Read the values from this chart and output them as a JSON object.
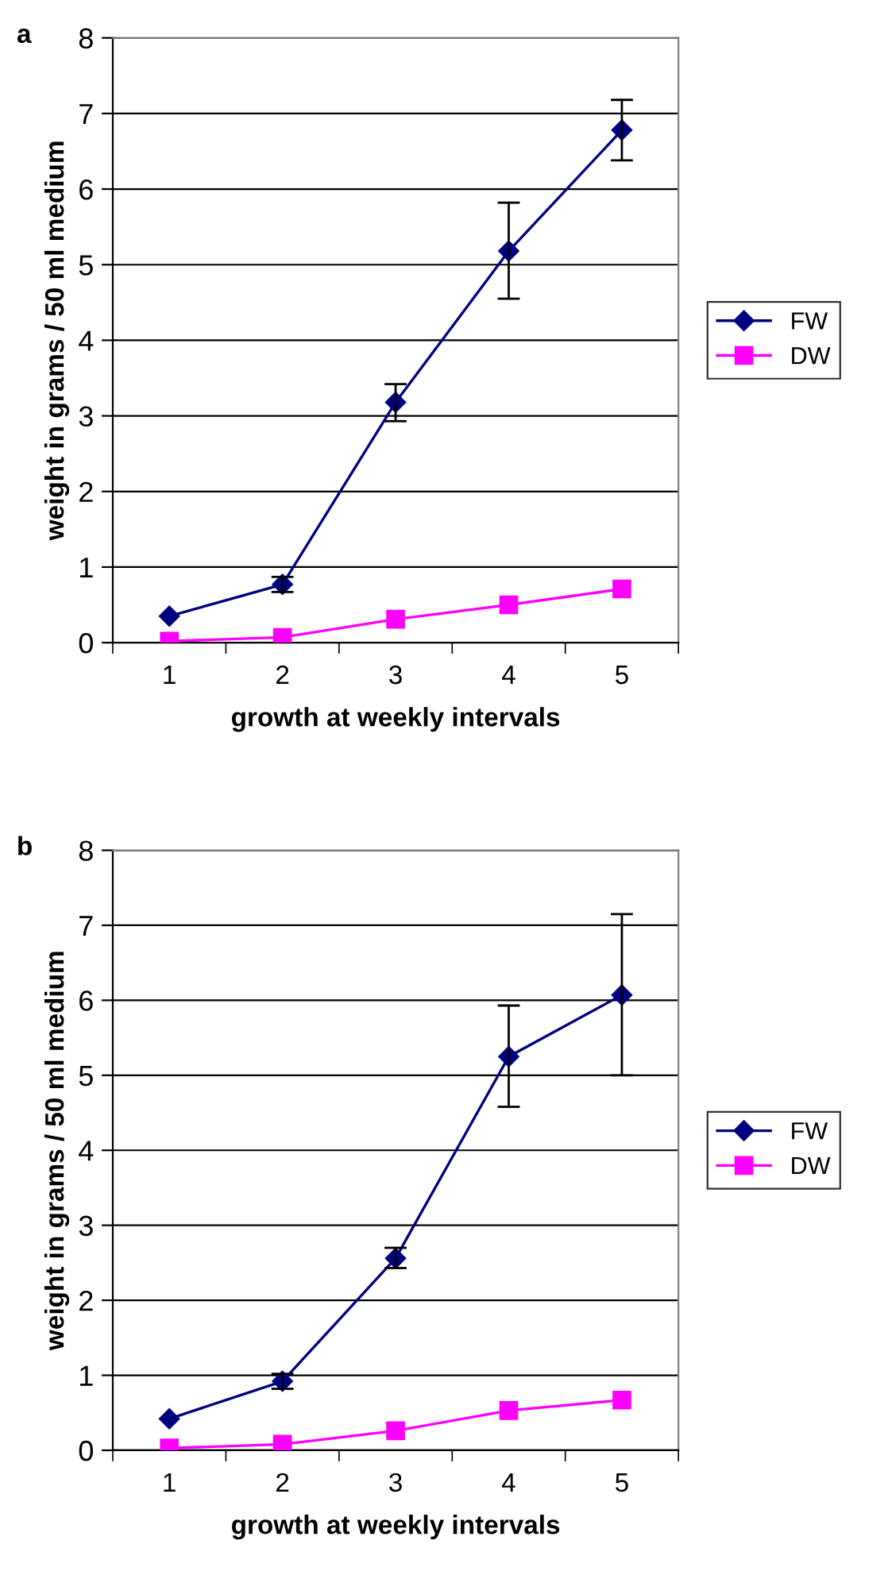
{
  "chart_data": [
    {
      "type": "line",
      "title": "a",
      "xlabel": "growth at weekly intervals",
      "ylabel": "weight in grams / 50 ml medium",
      "categories": [
        "1",
        "2",
        "3",
        "4",
        "5"
      ],
      "ylim": [
        0,
        8
      ],
      "yticks": [
        0,
        1,
        2,
        3,
        4,
        5,
        6,
        7,
        8
      ],
      "grid": "y",
      "legend": "right",
      "series": [
        {
          "name": "FW",
          "color": "#000080",
          "marker": "diamond",
          "values": [
            0.35,
            0.77,
            3.18,
            5.18,
            6.78
          ],
          "errors": [
            null,
            0.1,
            [
              2.93,
              3.42
            ],
            [
              4.55,
              5.82
            ],
            [
              6.38,
              7.18
            ]
          ]
        },
        {
          "name": "DW",
          "color": "#ff00ff",
          "marker": "square",
          "values": [
            0.02,
            0.07,
            0.31,
            0.5,
            0.71
          ]
        }
      ]
    },
    {
      "type": "line",
      "title": "b",
      "xlabel": "growth at weekly intervals",
      "ylabel": "weight in grams / 50 ml medium",
      "categories": [
        "1",
        "2",
        "3",
        "4",
        "5"
      ],
      "ylim": [
        0,
        8
      ],
      "yticks": [
        0,
        1,
        2,
        3,
        4,
        5,
        6,
        7,
        8
      ],
      "grid": "y",
      "legend": "right",
      "series": [
        {
          "name": "FW",
          "color": "#000080",
          "marker": "diamond",
          "values": [
            0.42,
            0.92,
            2.56,
            5.25,
            6.07
          ],
          "errors": [
            null,
            0.1,
            [
              2.43,
              2.7
            ],
            [
              4.58,
              5.93
            ],
            [
              5.0,
              7.15
            ]
          ]
        },
        {
          "name": "DW",
          "color": "#ff00ff",
          "marker": "square",
          "values": [
            0.03,
            0.08,
            0.26,
            0.53,
            0.67
          ]
        }
      ]
    }
  ]
}
